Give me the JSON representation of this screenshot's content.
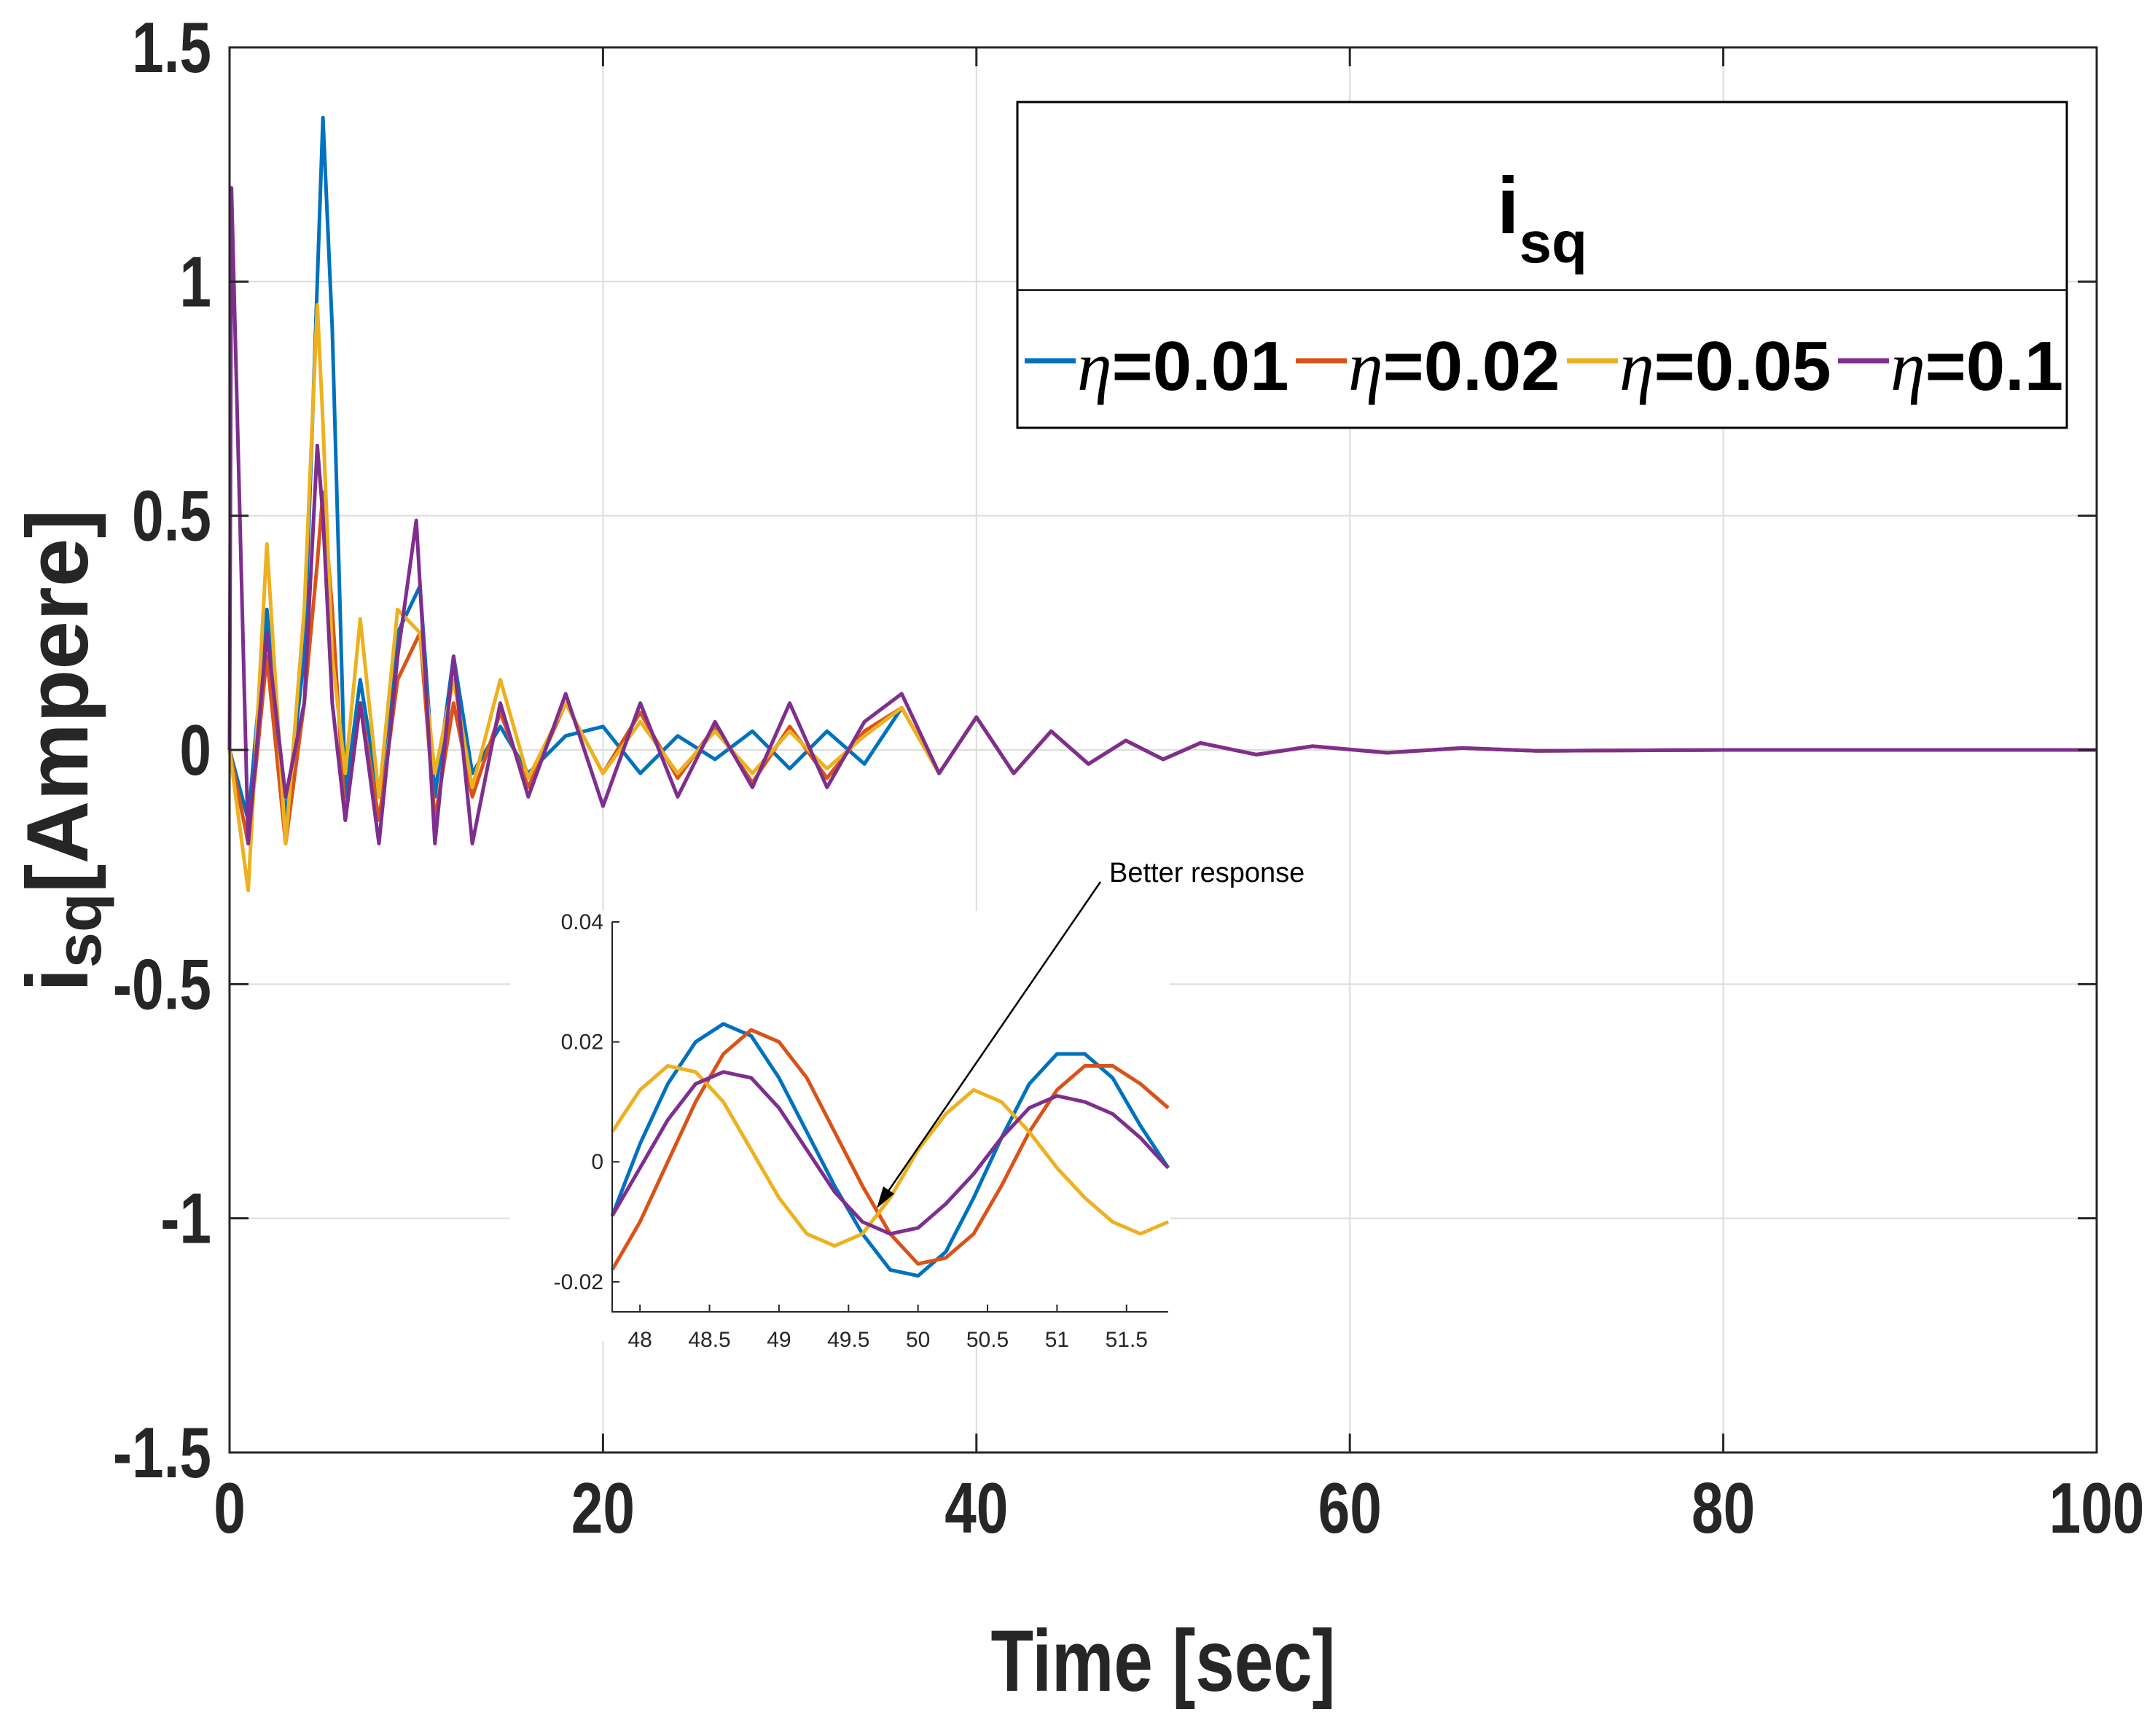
{
  "chart_data": {
    "type": "line",
    "title": "",
    "xlabel": "Time [sec]",
    "ylabel": "[Ampere]",
    "ylabel_symbol": "i",
    "ylabel_subscript": "sq",
    "xlim": [
      0,
      100
    ],
    "ylim": [
      -1.5,
      1.5
    ],
    "x_ticks": [
      "0",
      "20",
      "40",
      "60",
      "80",
      "100"
    ],
    "y_ticks": [
      "1.5",
      "1",
      "0.5",
      "0",
      "-0.5",
      "-1",
      "-1.5"
    ],
    "grid": true,
    "legend": {
      "title_symbol": "i",
      "title_subscript": "sq",
      "placement": "top-right",
      "entries": [
        {
          "symbol": "η",
          "label": "=0.01"
        },
        {
          "symbol": "η",
          "label": "=0.02"
        },
        {
          "symbol": "η",
          "label": "=0.05"
        },
        {
          "symbol": "η",
          "label": "=0.1"
        }
      ]
    },
    "series": [
      {
        "name": "η=0.01",
        "color": "#0072BD",
        "x": [
          0,
          1.0,
          2.0,
          3.0,
          4.0,
          4.7,
          5.0,
          5.5,
          6.2,
          7.0,
          8.0,
          9.0,
          10.2,
          11.0,
          12.0,
          13.0,
          14.5,
          16.0,
          18.0,
          20.0,
          22.0,
          24.0,
          26.0,
          28.0,
          30.0,
          32.0,
          34.0,
          36.0,
          38.0,
          40.0,
          42.0,
          44.0,
          46.0,
          48.0,
          50.0,
          52.0,
          55.0,
          58.0,
          62.0,
          66.0,
          70.0,
          80.0,
          100.0
        ],
        "y": [
          0,
          -0.15,
          0.3,
          -0.15,
          0.2,
          1.0,
          1.35,
          0.9,
          -0.1,
          0.15,
          -0.1,
          0.25,
          0.35,
          -0.1,
          0.2,
          -0.05,
          0.05,
          -0.05,
          0.03,
          0.05,
          -0.05,
          0.03,
          -0.02,
          0.04,
          -0.04,
          0.04,
          -0.03,
          0.09,
          -0.05,
          0.07,
          -0.05,
          0.04,
          -0.03,
          0.02,
          -0.02,
          0.015,
          -0.01,
          0.008,
          -0.006,
          0.004,
          -0.002,
          0,
          0
        ]
      },
      {
        "name": "η=0.02",
        "color": "#D95319",
        "x": [
          0,
          1.0,
          2.0,
          3.0,
          4.0,
          4.7,
          5.0,
          5.5,
          6.2,
          7.0,
          8.0,
          9.0,
          10.2,
          11.0,
          12.0,
          13.0,
          14.5,
          16.0,
          18.0,
          20.0,
          22.0,
          24.0,
          26.0,
          28.0,
          30.0,
          32.0,
          34.0,
          36.0,
          38.0,
          40.0,
          42.0,
          44.0,
          46.0,
          48.0,
          50.0,
          52.0,
          55.0,
          58.0,
          62.0,
          66.0,
          70.0,
          80.0,
          100.0
        ],
        "y": [
          0,
          -0.2,
          0.2,
          -0.2,
          0.1,
          0.4,
          0.55,
          0.3,
          -0.15,
          0.1,
          -0.15,
          0.15,
          0.25,
          -0.15,
          0.1,
          -0.1,
          0.08,
          -0.08,
          0.1,
          -0.05,
          0.08,
          -0.06,
          0.05,
          -0.07,
          0.05,
          -0.06,
          0.04,
          0.09,
          -0.05,
          0.07,
          -0.05,
          0.04,
          -0.03,
          0.02,
          -0.02,
          0.015,
          -0.01,
          0.008,
          -0.006,
          0.004,
          -0.002,
          0,
          0
        ]
      },
      {
        "name": "η=0.05",
        "color": "#EDB120",
        "x": [
          0,
          1.0,
          2.0,
          3.0,
          4.0,
          4.7,
          5.0,
          5.5,
          6.2,
          7.0,
          8.0,
          9.0,
          10.2,
          11.0,
          12.0,
          13.0,
          14.5,
          16.0,
          18.0,
          20.0,
          22.0,
          24.0,
          26.0,
          28.0,
          30.0,
          32.0,
          34.0,
          36.0,
          38.0,
          40.0,
          42.0,
          44.0,
          46.0,
          48.0,
          50.0,
          52.0,
          55.0,
          58.0,
          62.0,
          66.0,
          70.0,
          80.0,
          100.0
        ],
        "y": [
          0,
          -0.3,
          0.44,
          -0.2,
          0.3,
          0.95,
          0.7,
          0.2,
          -0.05,
          0.28,
          -0.1,
          0.3,
          0.25,
          -0.05,
          0.15,
          -0.08,
          0.15,
          -0.06,
          0.1,
          -0.05,
          0.06,
          -0.05,
          0.04,
          -0.05,
          0.04,
          -0.04,
          0.03,
          0.09,
          -0.05,
          0.07,
          -0.05,
          0.04,
          -0.03,
          0.02,
          -0.02,
          0.015,
          -0.01,
          0.008,
          -0.006,
          0.004,
          -0.002,
          0,
          0
        ]
      },
      {
        "name": "η=0.1",
        "color": "#7E2F8E",
        "x": [
          0,
          0.1,
          1.0,
          2.0,
          3.0,
          4.0,
          4.7,
          5.0,
          5.5,
          6.2,
          7.0,
          8.0,
          9.0,
          10.0,
          11.0,
          12.0,
          13.0,
          14.5,
          16.0,
          18.0,
          20.0,
          22.0,
          24.0,
          26.0,
          28.0,
          30.0,
          32.0,
          34.0,
          36.0,
          38.0,
          40.0,
          42.0,
          44.0,
          46.0,
          48.0,
          50.0,
          52.0,
          55.0,
          58.0,
          62.0,
          66.0,
          70.0,
          80.0,
          100.0
        ],
        "y": [
          0,
          1.2,
          -0.2,
          0.25,
          -0.1,
          0.1,
          0.65,
          0.5,
          0.1,
          -0.15,
          0.1,
          -0.2,
          0.2,
          0.49,
          -0.2,
          0.2,
          -0.2,
          0.1,
          -0.1,
          0.12,
          -0.12,
          0.1,
          -0.1,
          0.06,
          -0.08,
          0.1,
          -0.08,
          0.06,
          0.12,
          -0.05,
          0.07,
          -0.05,
          0.04,
          -0.03,
          0.02,
          -0.02,
          0.015,
          -0.01,
          0.008,
          -0.006,
          0.004,
          -0.002,
          0,
          0
        ]
      }
    ],
    "inset": {
      "xlim": [
        47.8,
        51.8
      ],
      "ylim": [
        -0.025,
        0.04
      ],
      "x_ticks": [
        "48",
        "48.5",
        "49",
        "49.5",
        "50",
        "50.5",
        "51",
        "51.5"
      ],
      "y_ticks": [
        "0.04",
        "0.02",
        "0",
        "-0.02"
      ],
      "annotation": "Better response",
      "series": [
        {
          "name": "η=0.01",
          "color": "#0072BD",
          "x": [
            47.8,
            48.0,
            48.2,
            48.4,
            48.6,
            48.8,
            49.0,
            49.2,
            49.4,
            49.6,
            49.8,
            50.0,
            50.2,
            50.4,
            50.6,
            50.8,
            51.0,
            51.2,
            51.4,
            51.6,
            51.8
          ],
          "y": [
            -0.009,
            0.003,
            0.013,
            0.02,
            0.023,
            0.021,
            0.014,
            0.005,
            -0.004,
            -0.012,
            -0.018,
            -0.019,
            -0.015,
            -0.006,
            0.004,
            0.013,
            0.018,
            0.018,
            0.014,
            0.006,
            -0.001
          ]
        },
        {
          "name": "η=0.02",
          "color": "#D95319",
          "x": [
            47.8,
            48.0,
            48.2,
            48.4,
            48.6,
            48.8,
            49.0,
            49.2,
            49.4,
            49.6,
            49.8,
            50.0,
            50.2,
            50.4,
            50.6,
            50.8,
            51.0,
            51.2,
            51.4,
            51.6,
            51.8
          ],
          "y": [
            -0.018,
            -0.01,
            0.0,
            0.01,
            0.018,
            0.022,
            0.02,
            0.014,
            0.005,
            -0.004,
            -0.012,
            -0.017,
            -0.016,
            -0.012,
            -0.004,
            0.005,
            0.012,
            0.016,
            0.016,
            0.013,
            0.009
          ]
        },
        {
          "name": "η=0.05",
          "color": "#EDB120",
          "x": [
            47.8,
            48.0,
            48.2,
            48.4,
            48.6,
            48.8,
            49.0,
            49.2,
            49.4,
            49.6,
            49.8,
            50.0,
            50.2,
            50.4,
            50.6,
            50.8,
            51.0,
            51.2,
            51.4,
            51.6,
            51.8
          ],
          "y": [
            0.005,
            0.012,
            0.016,
            0.015,
            0.01,
            0.002,
            -0.006,
            -0.012,
            -0.014,
            -0.012,
            -0.006,
            0.002,
            0.008,
            0.012,
            0.01,
            0.005,
            -0.001,
            -0.006,
            -0.01,
            -0.012,
            -0.01
          ]
        },
        {
          "name": "η=0.1",
          "color": "#7E2F8E",
          "x": [
            47.8,
            48.0,
            48.2,
            48.4,
            48.6,
            48.8,
            49.0,
            49.2,
            49.4,
            49.6,
            49.8,
            50.0,
            50.2,
            50.4,
            50.6,
            50.8,
            51.0,
            51.2,
            51.4,
            51.6,
            51.8
          ],
          "y": [
            -0.009,
            -0.001,
            0.007,
            0.013,
            0.015,
            0.014,
            0.009,
            0.002,
            -0.005,
            -0.01,
            -0.012,
            -0.011,
            -0.007,
            -0.002,
            0.004,
            0.009,
            0.011,
            0.01,
            0.008,
            0.004,
            -0.001
          ]
        }
      ]
    }
  }
}
